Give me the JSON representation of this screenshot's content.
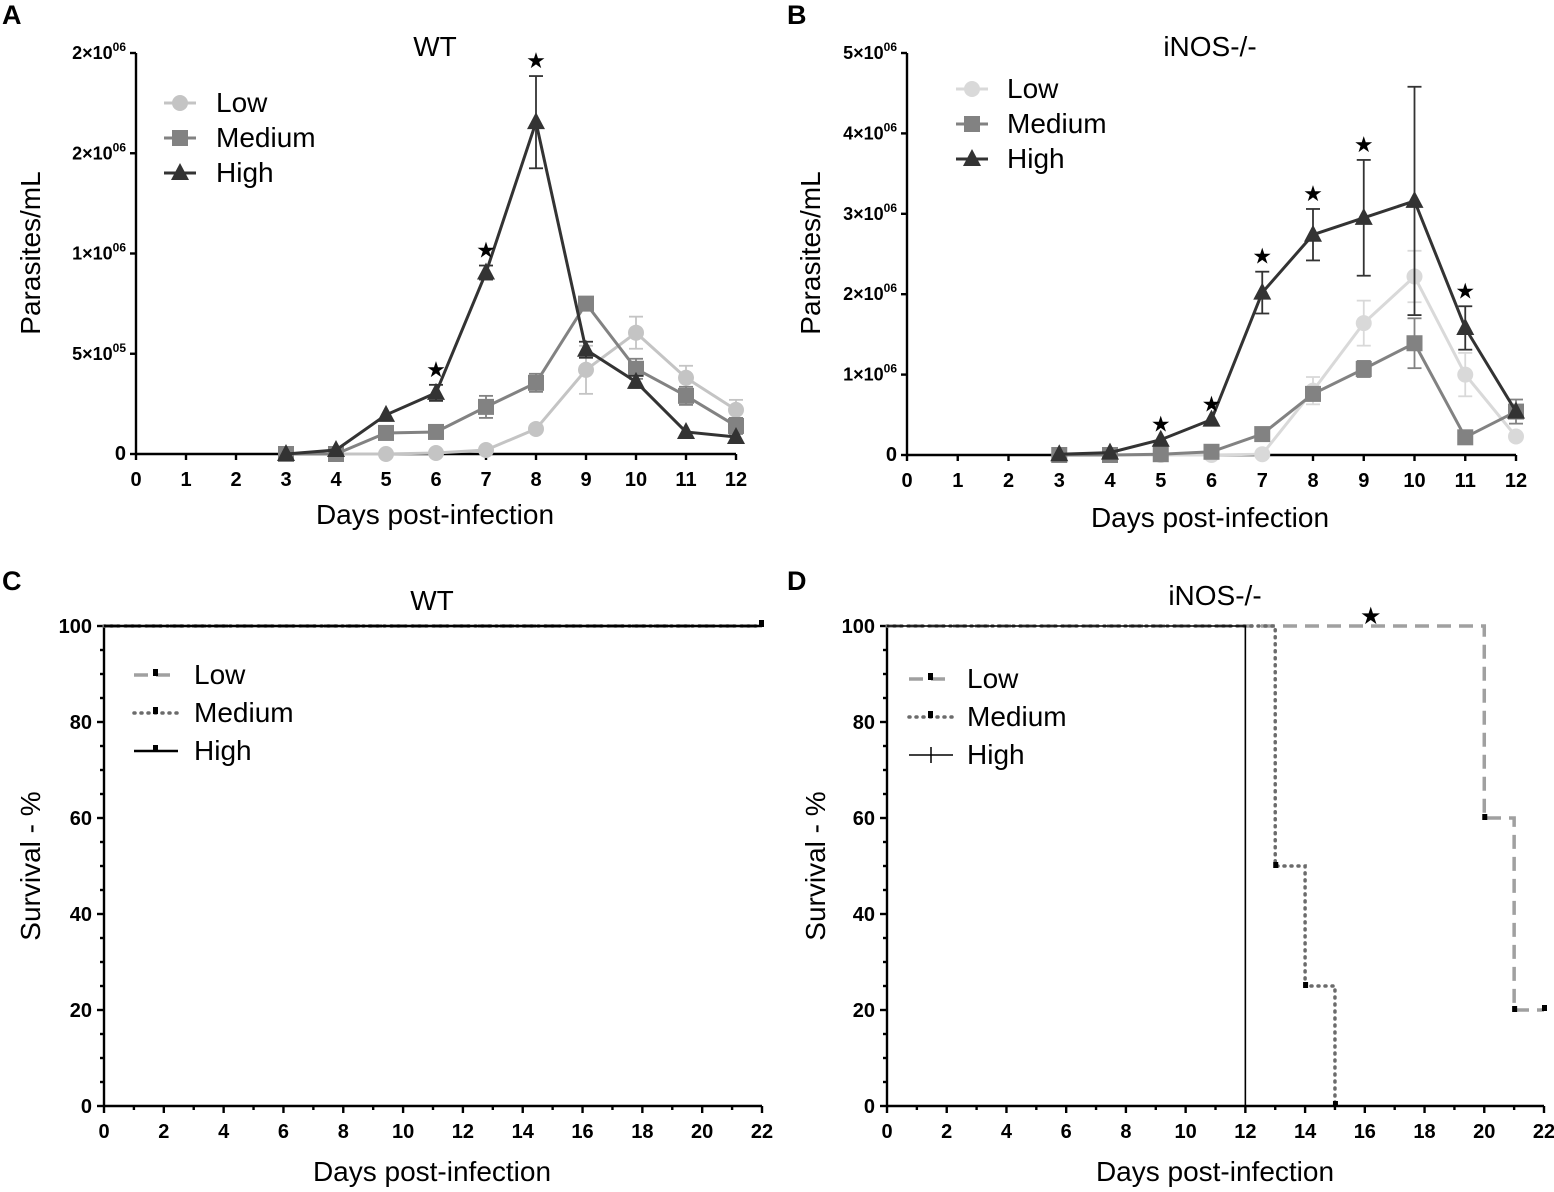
{
  "colors": {
    "low": "#c4c4c4",
    "medium": "#828282",
    "high": "#333333",
    "low_b": "#d9d9d9",
    "low_dash": "#a0a0a0",
    "medium_dot": "#6b6b6b",
    "axis": "#000000"
  },
  "chart_data": [
    {
      "panel": "A",
      "type": "line",
      "title": "WT",
      "xlabel": "Days post-infection",
      "ylabel": "Parasites/mL",
      "xlim": [
        0,
        12
      ],
      "ylim": [
        0,
        2000000
      ],
      "x_ticks": [
        "0",
        "1",
        "2",
        "3",
        "4",
        "5",
        "6",
        "7",
        "8",
        "9",
        "10",
        "11",
        "12"
      ],
      "y_ticks": [
        {
          "value": 0,
          "mant": "0",
          "exp": ""
        },
        {
          "value": 500000,
          "mant": "5×10",
          "exp": "05"
        },
        {
          "value": 1000000,
          "mant": "1×10",
          "exp": "06"
        },
        {
          "value": 1500000,
          "mant": "2×10",
          "exp": "06"
        },
        {
          "value": 2000000,
          "mant": "2×10",
          "exp": "06"
        }
      ],
      "legend": [
        "Low",
        "Medium",
        "High"
      ],
      "x": [
        3,
        4,
        5,
        6,
        7,
        8,
        9,
        10,
        11,
        12
      ],
      "series": [
        {
          "name": "Low",
          "marker": "circle",
          "values": [
            0,
            0,
            0,
            5000,
            20000,
            125000,
            420000,
            605000,
            380000,
            220000
          ],
          "errors": [
            0,
            0,
            0,
            0,
            0,
            0,
            120000,
            80000,
            60000,
            50000
          ]
        },
        {
          "name": "Medium",
          "marker": "square",
          "values": [
            0,
            0,
            105000,
            110000,
            235000,
            355000,
            750000,
            425000,
            290000,
            140000
          ],
          "errors": [
            0,
            0,
            0,
            0,
            55000,
            45000,
            0,
            50000,
            45000,
            40000
          ]
        },
        {
          "name": "High",
          "marker": "triangle",
          "values": [
            0,
            20000,
            195000,
            305000,
            905000,
            1655000,
            520000,
            360000,
            110000,
            85000
          ],
          "errors": [
            0,
            0,
            0,
            40000,
            35000,
            230000,
            40000,
            30000,
            0,
            0
          ]
        }
      ],
      "significance_x": [
        6,
        7,
        8
      ]
    },
    {
      "panel": "B",
      "type": "line",
      "title": "iNOS-/-",
      "xlabel": "Days post-infection",
      "ylabel": "Parasites/mL",
      "xlim": [
        0,
        12
      ],
      "ylim": [
        0,
        5000000
      ],
      "x_ticks": [
        "0",
        "1",
        "2",
        "3",
        "4",
        "5",
        "6",
        "7",
        "8",
        "9",
        "10",
        "11",
        "12"
      ],
      "y_ticks": [
        {
          "value": 0,
          "mant": "0",
          "exp": ""
        },
        {
          "value": 1000000,
          "mant": "1×10",
          "exp": "06"
        },
        {
          "value": 2000000,
          "mant": "2×10",
          "exp": "06"
        },
        {
          "value": 3000000,
          "mant": "3×10",
          "exp": "06"
        },
        {
          "value": 4000000,
          "mant": "4×10",
          "exp": "06"
        },
        {
          "value": 5000000,
          "mant": "5×10",
          "exp": "06"
        }
      ],
      "legend": [
        "Low",
        "Medium",
        "High"
      ],
      "x": [
        3,
        4,
        5,
        6,
        7,
        8,
        9,
        10,
        11,
        12
      ],
      "series": [
        {
          "name": "Low",
          "marker": "circle",
          "values": [
            0,
            0,
            0,
            0,
            10000,
            800000,
            1640000,
            2220000,
            1000000,
            230000
          ],
          "errors": [
            0,
            0,
            0,
            0,
            0,
            170000,
            280000,
            320000,
            270000,
            0
          ]
        },
        {
          "name": "Medium",
          "marker": "square",
          "values": [
            0,
            0,
            10000,
            40000,
            260000,
            760000,
            1070000,
            1390000,
            220000,
            540000
          ],
          "errors": [
            0,
            0,
            0,
            0,
            0,
            80000,
            100000,
            310000,
            0,
            150000
          ]
        },
        {
          "name": "High",
          "marker": "triangle",
          "values": [
            10000,
            30000,
            190000,
            440000,
            2020000,
            2740000,
            2950000,
            3160000,
            1580000,
            540000
          ],
          "errors": [
            0,
            0,
            0,
            0,
            260000,
            320000,
            720000,
            1420000,
            270000,
            0
          ]
        }
      ],
      "significance_x": [
        5,
        6,
        7,
        8,
        9,
        11
      ]
    },
    {
      "panel": "C",
      "type": "line",
      "title": "WT",
      "xlabel": "Days post-infection",
      "ylabel": "Survival - %",
      "xlim": [
        0,
        22
      ],
      "ylim": [
        0,
        100
      ],
      "x_ticks": [
        "0",
        "2",
        "4",
        "6",
        "8",
        "10",
        "12",
        "14",
        "16",
        "18",
        "20",
        "22"
      ],
      "y_ticks": [
        "0",
        "20",
        "40",
        "60",
        "80",
        "100"
      ],
      "legend": [
        "Low",
        "Medium",
        "High"
      ],
      "series": [
        {
          "name": "Low",
          "style": "dashed",
          "steps": [
            [
              0,
              100
            ],
            [
              22,
              100
            ]
          ]
        },
        {
          "name": "Medium",
          "style": "dotted",
          "steps": [
            [
              0,
              100
            ],
            [
              22,
              100
            ]
          ]
        },
        {
          "name": "High",
          "style": "solid",
          "steps": [
            [
              0,
              100
            ],
            [
              22,
              100
            ]
          ]
        }
      ]
    },
    {
      "panel": "D",
      "type": "line",
      "title": "iNOS-/-",
      "xlabel": "Days post-infection",
      "ylabel": "Survival - %",
      "xlim": [
        0,
        22
      ],
      "ylim": [
        0,
        100
      ],
      "x_ticks": [
        "0",
        "2",
        "4",
        "6",
        "8",
        "10",
        "12",
        "14",
        "16",
        "18",
        "20",
        "22"
      ],
      "y_ticks": [
        "0",
        "20",
        "40",
        "60",
        "80",
        "100"
      ],
      "legend": [
        "Low",
        "Medium",
        "High"
      ],
      "series": [
        {
          "name": "Low",
          "style": "dashed",
          "steps": [
            [
              0,
              100
            ],
            [
              20,
              100
            ],
            [
              20,
              60
            ],
            [
              21,
              60
            ],
            [
              21,
              20
            ],
            [
              22,
              20
            ]
          ]
        },
        {
          "name": "Medium",
          "style": "dotted",
          "steps": [
            [
              0,
              100
            ],
            [
              13,
              100
            ],
            [
              13,
              50
            ],
            [
              14,
              50
            ],
            [
              14,
              25
            ],
            [
              15,
              25
            ],
            [
              15,
              0
            ]
          ]
        },
        {
          "name": "High",
          "style": "solid",
          "steps": [
            [
              0,
              100
            ],
            [
              12,
              100
            ],
            [
              12,
              0
            ]
          ]
        }
      ],
      "significance_x": [
        16.2
      ]
    }
  ],
  "panel_letters": [
    "A",
    "B",
    "C",
    "D"
  ],
  "significance_symbol": "★"
}
